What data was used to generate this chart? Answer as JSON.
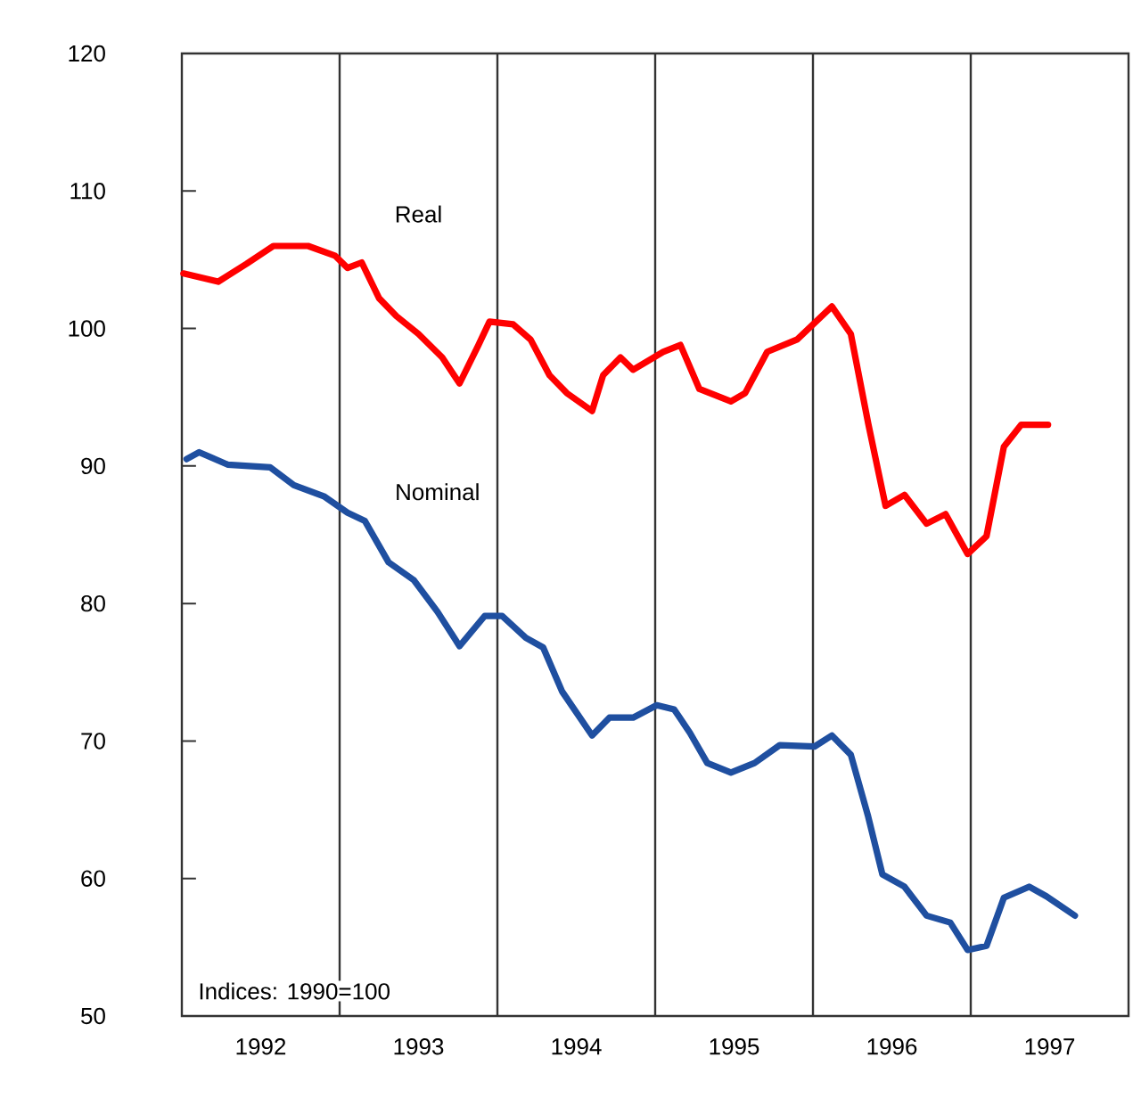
{
  "chart_data": {
    "type": "line",
    "annotations": [
      "Indices: 1990=100"
    ],
    "xlim": [
      1992,
      1998
    ],
    "xticks": [
      {
        "value": 1992.5,
        "label": "1992"
      },
      {
        "value": 1993.5,
        "label": "1993"
      },
      {
        "value": 1994.5,
        "label": "1994"
      },
      {
        "value": 1995.5,
        "label": "1995"
      },
      {
        "value": 1996.5,
        "label": "1996"
      },
      {
        "value": 1997.5,
        "label": "1997"
      }
    ],
    "ylim": [
      50,
      120
    ],
    "yticks": [
      50,
      60,
      70,
      80,
      90,
      100,
      110,
      120
    ],
    "grid": false,
    "legend": false,
    "marker": "none",
    "line_style": "solid",
    "ref_lines": [
      {
        "axis": "x",
        "value": 1993,
        "color": "#333333"
      },
      {
        "axis": "x",
        "value": 1994,
        "color": "#333333"
      },
      {
        "axis": "x",
        "value": 1995,
        "color": "#333333"
      },
      {
        "axis": "x",
        "value": 1996,
        "color": "#333333"
      },
      {
        "axis": "x",
        "value": 1997,
        "color": "#333333"
      }
    ],
    "series": [
      {
        "name": "Real",
        "color": "#ff0000",
        "x": [
          1992.01,
          1992.23,
          1992.41,
          1992.58,
          1992.8,
          1992.97,
          1993.05,
          1993.14,
          1993.25,
          1993.36,
          1993.5,
          1993.65,
          1993.76,
          1993.88,
          1993.95,
          1994.1,
          1994.21,
          1994.33,
          1994.44,
          1994.6,
          1994.67,
          1994.78,
          1994.86,
          1995.05,
          1995.16,
          1995.28,
          1995.48,
          1995.57,
          1995.71,
          1995.9,
          1996.12,
          1996.24,
          1996.35,
          1996.46,
          1996.58,
          1996.72,
          1996.84,
          1996.98,
          1997.1,
          1997.21,
          1997.32,
          1997.49
        ],
        "values": [
          104.0,
          103.4,
          104.7,
          106.0,
          106.0,
          105.3,
          104.4,
          104.8,
          102.2,
          100.9,
          99.6,
          97.9,
          96.0,
          98.8,
          100.5,
          100.3,
          99.2,
          96.6,
          95.3,
          94.0,
          96.6,
          97.9,
          97.0,
          98.3,
          98.8,
          95.6,
          94.7,
          95.3,
          98.3,
          99.2,
          101.6,
          99.6,
          93.1,
          87.1,
          87.9,
          85.8,
          86.5,
          83.6,
          84.9,
          91.4,
          93.0,
          93.0
        ]
      },
      {
        "name": "Nominal",
        "color": "#1f4fa0",
        "x": [
          1992.03,
          1992.11,
          1992.29,
          1992.56,
          1992.71,
          1992.9,
          1993.05,
          1993.16,
          1993.31,
          1993.47,
          1993.62,
          1993.76,
          1993.92,
          1994.03,
          1994.18,
          1994.29,
          1994.41,
          1994.6,
          1994.71,
          1994.86,
          1995.01,
          1995.12,
          1995.22,
          1995.33,
          1995.48,
          1995.63,
          1995.79,
          1996.01,
          1996.12,
          1996.24,
          1996.35,
          1996.44,
          1996.58,
          1996.72,
          1996.87,
          1996.98,
          1997.1,
          1997.21,
          1997.37,
          1997.48,
          1997.66
        ],
        "values": [
          90.5,
          91.0,
          90.1,
          89.9,
          88.6,
          87.8,
          86.6,
          86.0,
          83.0,
          81.7,
          79.4,
          76.9,
          79.1,
          79.1,
          77.5,
          76.8,
          73.6,
          70.4,
          71.7,
          71.7,
          72.6,
          72.3,
          70.6,
          68.4,
          67.7,
          68.4,
          69.7,
          69.6,
          70.4,
          69.0,
          64.5,
          60.3,
          59.4,
          57.3,
          56.8,
          54.8,
          55.1,
          58.6,
          59.4,
          58.7,
          57.3
        ]
      }
    ]
  }
}
